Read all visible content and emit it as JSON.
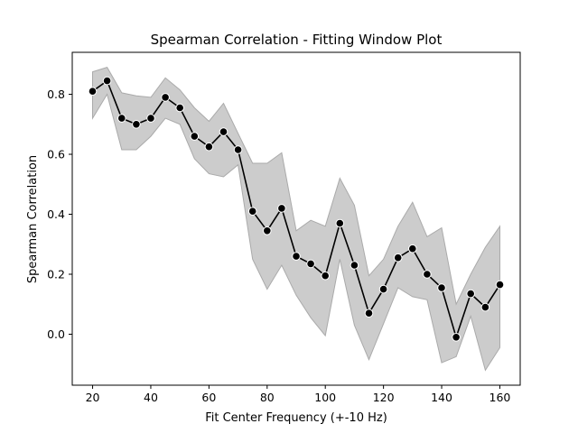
{
  "chart_data": {
    "type": "line",
    "title": "Spearman Correlation - Fitting Window Plot",
    "xlabel": "Fit Center Frequency (+-10 Hz)",
    "ylabel": "Spearman Correlation",
    "xlim": [
      13,
      167
    ],
    "ylim": [
      -0.17,
      0.94
    ],
    "xticks": [
      20,
      40,
      60,
      80,
      100,
      120,
      140,
      160
    ],
    "yticks": [
      0.0,
      0.2,
      0.4,
      0.6,
      0.8
    ],
    "ytick_labels": [
      "0.0",
      "0.2",
      "0.4",
      "0.6",
      "0.8"
    ],
    "grid": false,
    "colors": {
      "line": "#000000",
      "band": "#cccccc",
      "band_edge": "#aaaaaa",
      "marker_edge": "#ffffff"
    },
    "x": [
      20,
      25,
      30,
      35,
      40,
      45,
      50,
      55,
      60,
      65,
      70,
      75,
      80,
      85,
      90,
      95,
      100,
      105,
      110,
      115,
      120,
      125,
      130,
      135,
      140,
      145,
      150,
      155,
      160
    ],
    "y": [
      0.81,
      0.845,
      0.72,
      0.7,
      0.72,
      0.79,
      0.755,
      0.66,
      0.625,
      0.675,
      0.615,
      0.41,
      0.345,
      0.42,
      0.26,
      0.235,
      0.195,
      0.37,
      0.23,
      0.07,
      0.15,
      0.255,
      0.285,
      0.2,
      0.155,
      -0.01,
      0.135,
      0.09,
      0.165
    ],
    "upper": [
      0.875,
      0.89,
      0.805,
      0.795,
      0.79,
      0.855,
      0.815,
      0.755,
      0.71,
      0.77,
      0.67,
      0.57,
      0.57,
      0.605,
      0.345,
      0.38,
      0.36,
      0.52,
      0.43,
      0.195,
      0.25,
      0.36,
      0.44,
      0.325,
      0.355,
      0.1,
      0.2,
      0.29,
      0.36
    ],
    "lower": [
      0.72,
      0.8,
      0.615,
      0.615,
      0.66,
      0.72,
      0.7,
      0.585,
      0.535,
      0.525,
      0.565,
      0.25,
      0.15,
      0.23,
      0.13,
      0.055,
      -0.005,
      0.25,
      0.03,
      -0.085,
      0.035,
      0.155,
      0.125,
      0.115,
      -0.095,
      -0.075,
      0.06,
      -0.12,
      -0.045
    ]
  }
}
